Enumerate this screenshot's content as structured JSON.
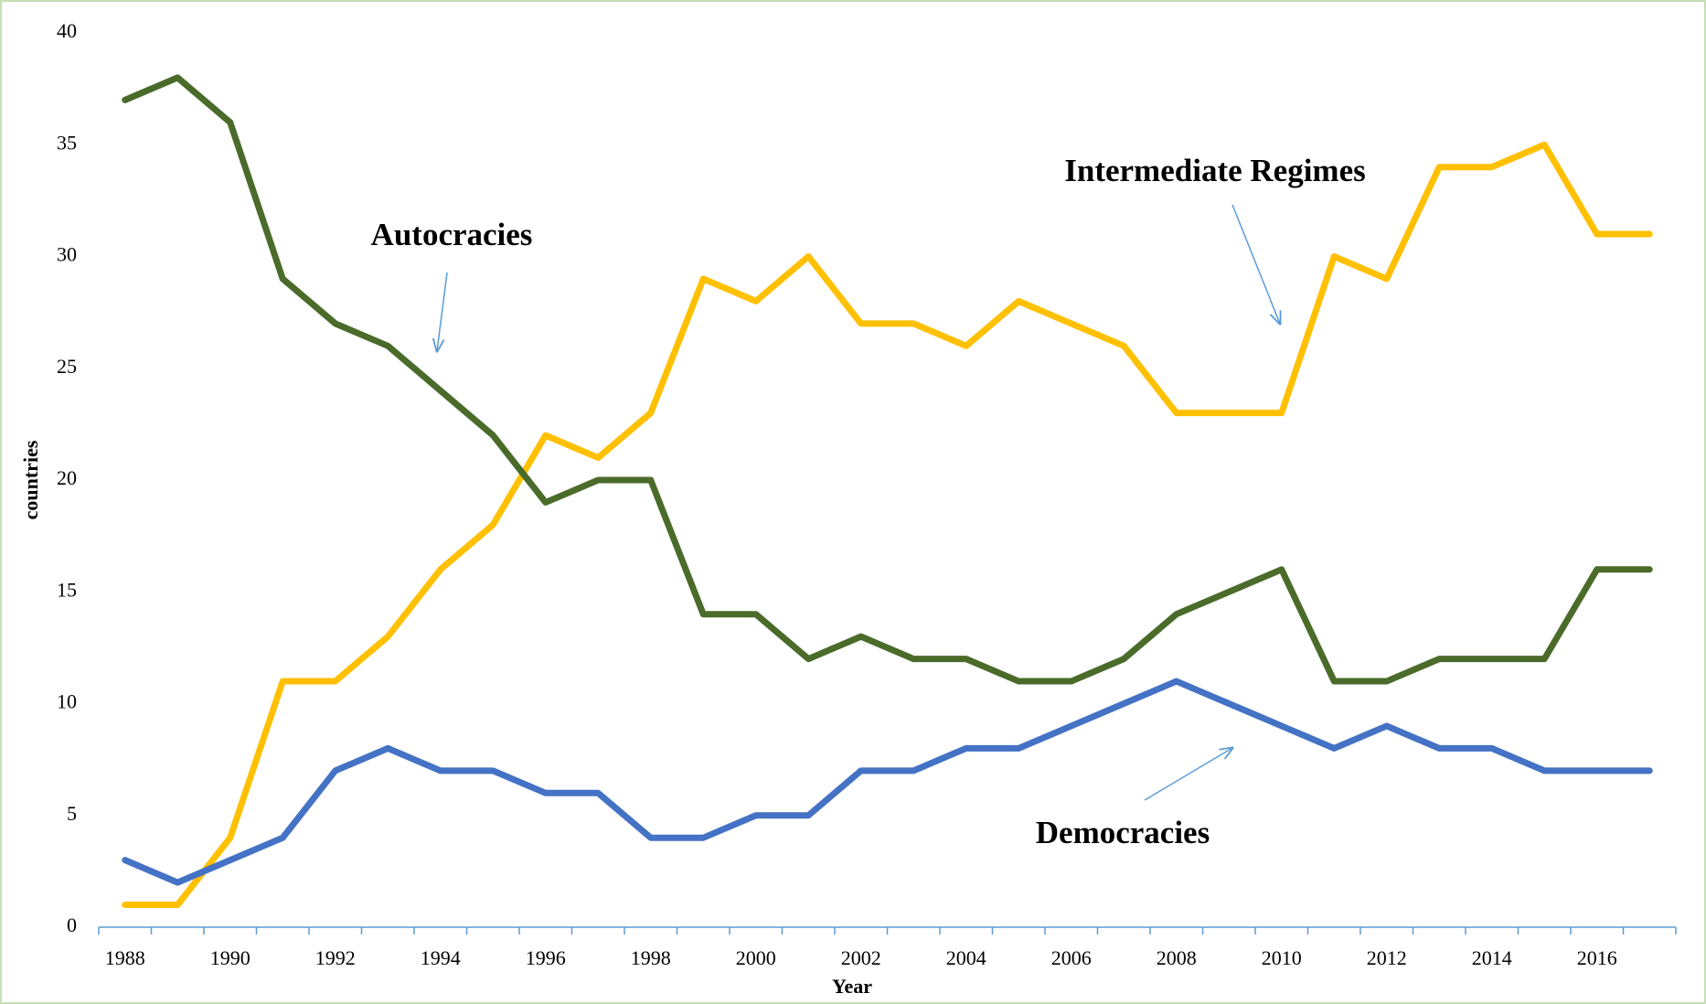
{
  "chart_data": {
    "type": "line",
    "x_label": "Year",
    "y_label": "countries",
    "categories": [
      "1988",
      null,
      "1990",
      null,
      "1992",
      null,
      "1994",
      null,
      "1996",
      null,
      "1998",
      null,
      "2000",
      null,
      "2002",
      null,
      "2004",
      null,
      "2006",
      null,
      "2008",
      null,
      "2010",
      null,
      "2012",
      null,
      "2014",
      null,
      "2016",
      null
    ],
    "series": [
      {
        "name": "Intermediate Regimes",
        "color": "#ffc000",
        "values": [
          1,
          1,
          4,
          11,
          11,
          13,
          16,
          18,
          22,
          21,
          23,
          29,
          28,
          30,
          27,
          27,
          26,
          28,
          27,
          26,
          23,
          23,
          23,
          30,
          29,
          34,
          34,
          35,
          31,
          31
        ]
      },
      {
        "name": "Autocracies",
        "color": "#4a6b2a",
        "values": [
          37,
          38,
          36,
          29,
          27,
          26,
          24,
          22,
          19,
          20,
          20,
          14,
          14,
          12,
          13,
          12,
          12,
          11,
          11,
          12,
          14,
          15,
          16,
          11,
          11,
          12,
          12,
          12,
          16,
          16
        ]
      },
      {
        "name": "Democracies",
        "color": "#4472c4",
        "values": [
          3,
          2,
          3,
          4,
          7,
          8,
          7,
          7,
          6,
          6,
          4,
          4,
          5,
          5,
          7,
          7,
          8,
          8,
          9,
          10,
          11,
          10,
          9,
          8,
          9,
          8,
          8,
          7,
          7,
          7
        ]
      }
    ],
    "ylim": [
      0,
      40
    ],
    "yticks": [
      0,
      5,
      10,
      15,
      20,
      25,
      30,
      35,
      40
    ],
    "grid": false
  }
}
